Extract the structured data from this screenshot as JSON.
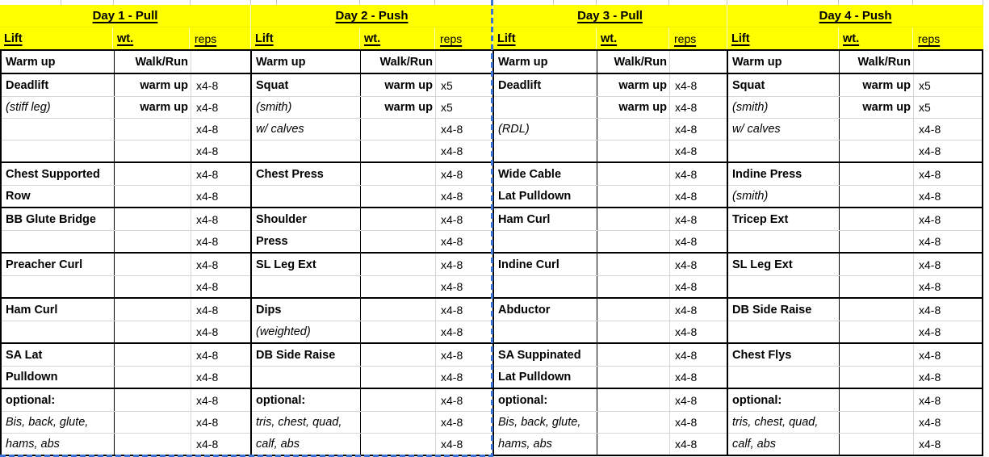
{
  "colors": {
    "header_fill": "#ffff00",
    "grid_line": "#d6d6d6",
    "border": "#000000",
    "page_break_blue": "#3a73d4",
    "text": "#000000"
  },
  "days": [
    {
      "title": "Day 1 - Pull",
      "headers": {
        "lift": "Lift",
        "wt": "wt.",
        "reps": "reps"
      },
      "warmup": {
        "lift": "Warm up",
        "wt": "Walk/Run",
        "reps": ""
      },
      "groups": [
        {
          "rows": [
            {
              "lift": "Deadlift",
              "italic": false,
              "wt": "warm up",
              "reps": "x4-8"
            },
            {
              "lift": "(stiff leg)",
              "italic": true,
              "wt": "warm up",
              "reps": "x4-8"
            },
            {
              "lift": "",
              "italic": false,
              "wt": "",
              "reps": "x4-8"
            },
            {
              "lift": "",
              "italic": false,
              "wt": "",
              "reps": "x4-8"
            }
          ]
        },
        {
          "rows": [
            {
              "lift": "Chest Supported",
              "italic": false,
              "wt": "",
              "reps": "x4-8"
            },
            {
              "lift": "Row",
              "italic": false,
              "wt": "",
              "reps": "x4-8"
            }
          ]
        },
        {
          "rows": [
            {
              "lift": "BB Glute Bridge",
              "italic": false,
              "wt": "",
              "reps": "x4-8"
            },
            {
              "lift": "",
              "italic": false,
              "wt": "",
              "reps": "x4-8"
            }
          ]
        },
        {
          "rows": [
            {
              "lift": "Preacher Curl",
              "italic": false,
              "wt": "",
              "reps": "x4-8"
            },
            {
              "lift": "",
              "italic": false,
              "wt": "",
              "reps": "x4-8"
            }
          ]
        },
        {
          "rows": [
            {
              "lift": "Ham Curl",
              "italic": false,
              "wt": "",
              "reps": "x4-8"
            },
            {
              "lift": "",
              "italic": false,
              "wt": "",
              "reps": "x4-8"
            }
          ]
        },
        {
          "rows": [
            {
              "lift": "SA Lat",
              "italic": false,
              "wt": "",
              "reps": "x4-8"
            },
            {
              "lift": "Pulldown",
              "italic": false,
              "wt": "",
              "reps": "x4-8"
            }
          ]
        },
        {
          "rows": [
            {
              "lift": "optional:",
              "italic": false,
              "wt": "",
              "reps": "x4-8"
            },
            {
              "lift": "Bis, back, glute,",
              "italic": true,
              "wt": "",
              "reps": "x4-8"
            },
            {
              "lift": "hams, abs",
              "italic": true,
              "wt": "",
              "reps": "x4-8"
            }
          ]
        }
      ]
    },
    {
      "title": "Day 2 - Push",
      "headers": {
        "lift": "Lift",
        "wt": "wt.",
        "reps": "reps"
      },
      "warmup": {
        "lift": "Warm up",
        "wt": "Walk/Run",
        "reps": ""
      },
      "groups": [
        {
          "rows": [
            {
              "lift": "Squat",
              "italic": false,
              "wt": "warm up",
              "reps": "x5"
            },
            {
              "lift": "(smith)",
              "italic": true,
              "wt": "warm up",
              "reps": "x5"
            },
            {
              "lift": "w/ calves",
              "italic": true,
              "wt": "",
              "reps": "x4-8"
            },
            {
              "lift": "",
              "italic": false,
              "wt": "",
              "reps": "x4-8"
            }
          ]
        },
        {
          "rows": [
            {
              "lift": "Chest Press",
              "italic": false,
              "wt": "",
              "reps": "x4-8"
            },
            {
              "lift": "",
              "italic": false,
              "wt": "",
              "reps": "x4-8"
            }
          ]
        },
        {
          "rows": [
            {
              "lift": "Shoulder",
              "italic": false,
              "wt": "",
              "reps": "x4-8"
            },
            {
              "lift": "Press",
              "italic": false,
              "wt": "",
              "reps": "x4-8"
            }
          ]
        },
        {
          "rows": [
            {
              "lift": "SL Leg Ext",
              "italic": false,
              "wt": "",
              "reps": "x4-8"
            },
            {
              "lift": "",
              "italic": false,
              "wt": "",
              "reps": "x4-8"
            }
          ]
        },
        {
          "rows": [
            {
              "lift": "Dips",
              "italic": false,
              "wt": "",
              "reps": "x4-8"
            },
            {
              "lift": "(weighted)",
              "italic": true,
              "wt": "",
              "reps": "x4-8"
            }
          ]
        },
        {
          "rows": [
            {
              "lift": "DB Side Raise",
              "italic": false,
              "wt": "",
              "reps": "x4-8"
            },
            {
              "lift": "",
              "italic": false,
              "wt": "",
              "reps": "x4-8"
            }
          ]
        },
        {
          "rows": [
            {
              "lift": "optional:",
              "italic": false,
              "wt": "",
              "reps": "x4-8"
            },
            {
              "lift": "tris, chest, quad,",
              "italic": true,
              "wt": "",
              "reps": "x4-8"
            },
            {
              "lift": "calf, abs",
              "italic": true,
              "wt": "",
              "reps": "x4-8"
            }
          ]
        }
      ]
    },
    {
      "title": "Day 3 - Pull",
      "headers": {
        "lift": "Lift",
        "wt": "wt.",
        "reps": "reps"
      },
      "warmup": {
        "lift": "Warm up",
        "wt": "Walk/Run",
        "reps": ""
      },
      "groups": [
        {
          "rows": [
            {
              "lift": "Deadlift",
              "italic": false,
              "wt": "warm up",
              "reps": "x4-8"
            },
            {
              "lift": "",
              "italic": false,
              "wt": "warm up",
              "reps": "x4-8"
            },
            {
              "lift": "(RDL)",
              "italic": true,
              "wt": "",
              "reps": "x4-8"
            },
            {
              "lift": "",
              "italic": false,
              "wt": "",
              "reps": "x4-8"
            }
          ]
        },
        {
          "rows": [
            {
              "lift": "Wide Cable",
              "italic": false,
              "wt": "",
              "reps": "x4-8"
            },
            {
              "lift": "Lat Pulldown",
              "italic": false,
              "wt": "",
              "reps": "x4-8"
            }
          ]
        },
        {
          "rows": [
            {
              "lift": "Ham Curl",
              "italic": false,
              "wt": "",
              "reps": "x4-8"
            },
            {
              "lift": "",
              "italic": false,
              "wt": "",
              "reps": "x4-8"
            }
          ]
        },
        {
          "rows": [
            {
              "lift": "Indine Curl",
              "italic": false,
              "wt": "",
              "reps": "x4-8"
            },
            {
              "lift": "",
              "italic": false,
              "wt": "",
              "reps": "x4-8"
            }
          ]
        },
        {
          "rows": [
            {
              "lift": "Abductor",
              "italic": false,
              "wt": "",
              "reps": "x4-8"
            },
            {
              "lift": "",
              "italic": false,
              "wt": "",
              "reps": "x4-8"
            }
          ]
        },
        {
          "rows": [
            {
              "lift": "SA Suppinated",
              "italic": false,
              "wt": "",
              "reps": "x4-8"
            },
            {
              "lift": "Lat Pulldown",
              "italic": false,
              "wt": "",
              "reps": "x4-8"
            }
          ]
        },
        {
          "rows": [
            {
              "lift": "optional:",
              "italic": false,
              "wt": "",
              "reps": "x4-8"
            },
            {
              "lift": "Bis, back, glute,",
              "italic": true,
              "wt": "",
              "reps": "x4-8"
            },
            {
              "lift": "hams, abs",
              "italic": true,
              "wt": "",
              "reps": "x4-8"
            }
          ]
        }
      ]
    },
    {
      "title": "Day 4 - Push",
      "headers": {
        "lift": "Lift",
        "wt": "wt.",
        "reps": "reps"
      },
      "warmup": {
        "lift": "Warm up",
        "wt": "Walk/Run",
        "reps": ""
      },
      "groups": [
        {
          "rows": [
            {
              "lift": "Squat",
              "italic": false,
              "wt": "warm up",
              "reps": "x5"
            },
            {
              "lift": "(smith)",
              "italic": true,
              "wt": "warm up",
              "reps": "x5"
            },
            {
              "lift": "w/ calves",
              "italic": true,
              "wt": "",
              "reps": "x4-8"
            },
            {
              "lift": "",
              "italic": false,
              "wt": "",
              "reps": "x4-8"
            }
          ]
        },
        {
          "rows": [
            {
              "lift": "Indine Press",
              "italic": false,
              "wt": "",
              "reps": "x4-8"
            },
            {
              "lift": "(smith)",
              "italic": true,
              "wt": "",
              "reps": "x4-8"
            }
          ]
        },
        {
          "rows": [
            {
              "lift": "Tricep Ext",
              "italic": false,
              "wt": "",
              "reps": "x4-8"
            },
            {
              "lift": "",
              "italic": false,
              "wt": "",
              "reps": "x4-8"
            }
          ]
        },
        {
          "rows": [
            {
              "lift": "SL Leg Ext",
              "italic": false,
              "wt": "",
              "reps": "x4-8"
            },
            {
              "lift": "",
              "italic": false,
              "wt": "",
              "reps": "x4-8"
            }
          ]
        },
        {
          "rows": [
            {
              "lift": "DB Side Raise",
              "italic": false,
              "wt": "",
              "reps": "x4-8"
            },
            {
              "lift": "",
              "italic": false,
              "wt": "",
              "reps": "x4-8"
            }
          ]
        },
        {
          "rows": [
            {
              "lift": "Chest Flys",
              "italic": false,
              "wt": "",
              "reps": "x4-8"
            },
            {
              "lift": "",
              "italic": false,
              "wt": "",
              "reps": "x4-8"
            }
          ]
        },
        {
          "rows": [
            {
              "lift": "optional:",
              "italic": false,
              "wt": "",
              "reps": "x4-8"
            },
            {
              "lift": "tris, chest, quad,",
              "italic": true,
              "wt": "",
              "reps": "x4-8"
            },
            {
              "lift": "calf, abs",
              "italic": true,
              "wt": "",
              "reps": "x4-8"
            }
          ]
        }
      ]
    }
  ]
}
